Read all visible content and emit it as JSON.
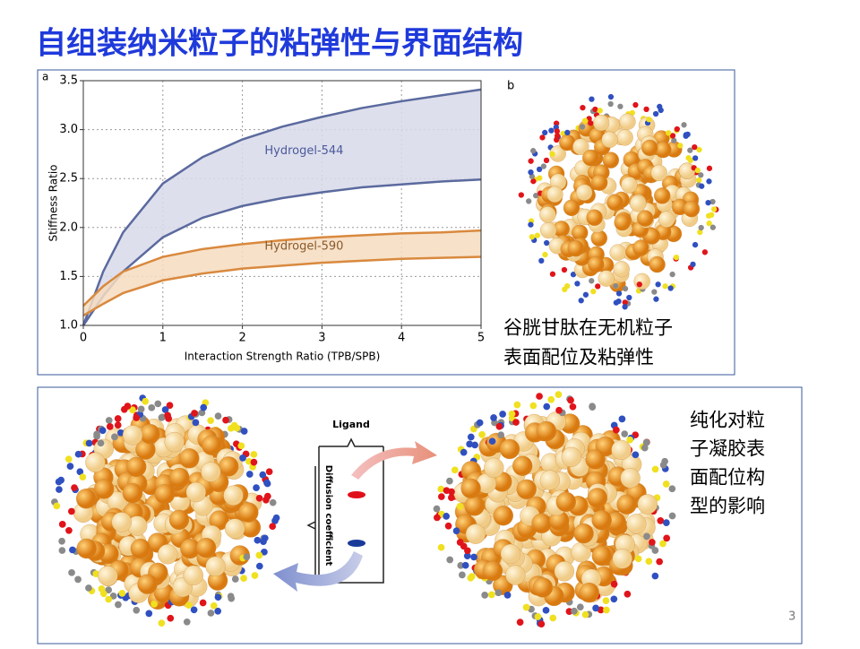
{
  "header": {
    "title": "自组装纳米粒子的粘弹性与界面结构"
  },
  "panel_a": {
    "label": "a",
    "chart_data": {
      "type": "band",
      "x_label": "Interaction Strength Ratio (TPB/SPB)",
      "y_label": "Stiffness Ratio",
      "x": [
        0,
        0.25,
        0.5,
        1,
        1.5,
        2,
        2.5,
        3,
        3.5,
        4,
        4.5,
        5
      ],
      "series": [
        {
          "name": "Hydrogel-544",
          "color": "#5b6a9e",
          "fill": "#d8d9ea",
          "upper": [
            1.0,
            1.55,
            1.95,
            2.45,
            2.72,
            2.9,
            3.03,
            3.13,
            3.22,
            3.29,
            3.35,
            3.41
          ],
          "lower": [
            1.0,
            1.3,
            1.55,
            1.9,
            2.1,
            2.22,
            2.3,
            2.36,
            2.41,
            2.44,
            2.47,
            2.49
          ]
        },
        {
          "name": "Hydrogel-590",
          "color": "#d9893e",
          "fill": "#f6dcc0",
          "upper": [
            1.2,
            1.4,
            1.55,
            1.7,
            1.78,
            1.83,
            1.87,
            1.9,
            1.92,
            1.94,
            1.95,
            1.97
          ],
          "lower": [
            1.1,
            1.22,
            1.33,
            1.46,
            1.53,
            1.58,
            1.61,
            1.64,
            1.66,
            1.68,
            1.69,
            1.7
          ]
        }
      ],
      "xlim": [
        0,
        5
      ],
      "xticks": [
        0,
        1,
        2,
        3,
        4,
        5
      ],
      "ylim": [
        1,
        3.5
      ],
      "yticks": [
        {
          "value": 1,
          "label": "1.0"
        },
        {
          "value": 1.5,
          "label": "1.5"
        },
        {
          "value": 2,
          "label": "2.0"
        },
        {
          "value": 2.5,
          "label": "2.5"
        },
        {
          "value": 3,
          "label": "3.0"
        },
        {
          "value": 3.5,
          "label": "3.5"
        }
      ],
      "grid": true
    }
  },
  "panel_b": {
    "label": "b",
    "caption": [
      "谷胱甘肽在无机粒子",
      "表面配位及粘弹性"
    ]
  },
  "panel_c": {
    "ligand_label": "Ligand",
    "axis_label": "Diffusion coefficient",
    "note": [
      "纯化对粒",
      "子凝胶表",
      "面配位构",
      "型的影响"
    ]
  },
  "page_number": "3"
}
